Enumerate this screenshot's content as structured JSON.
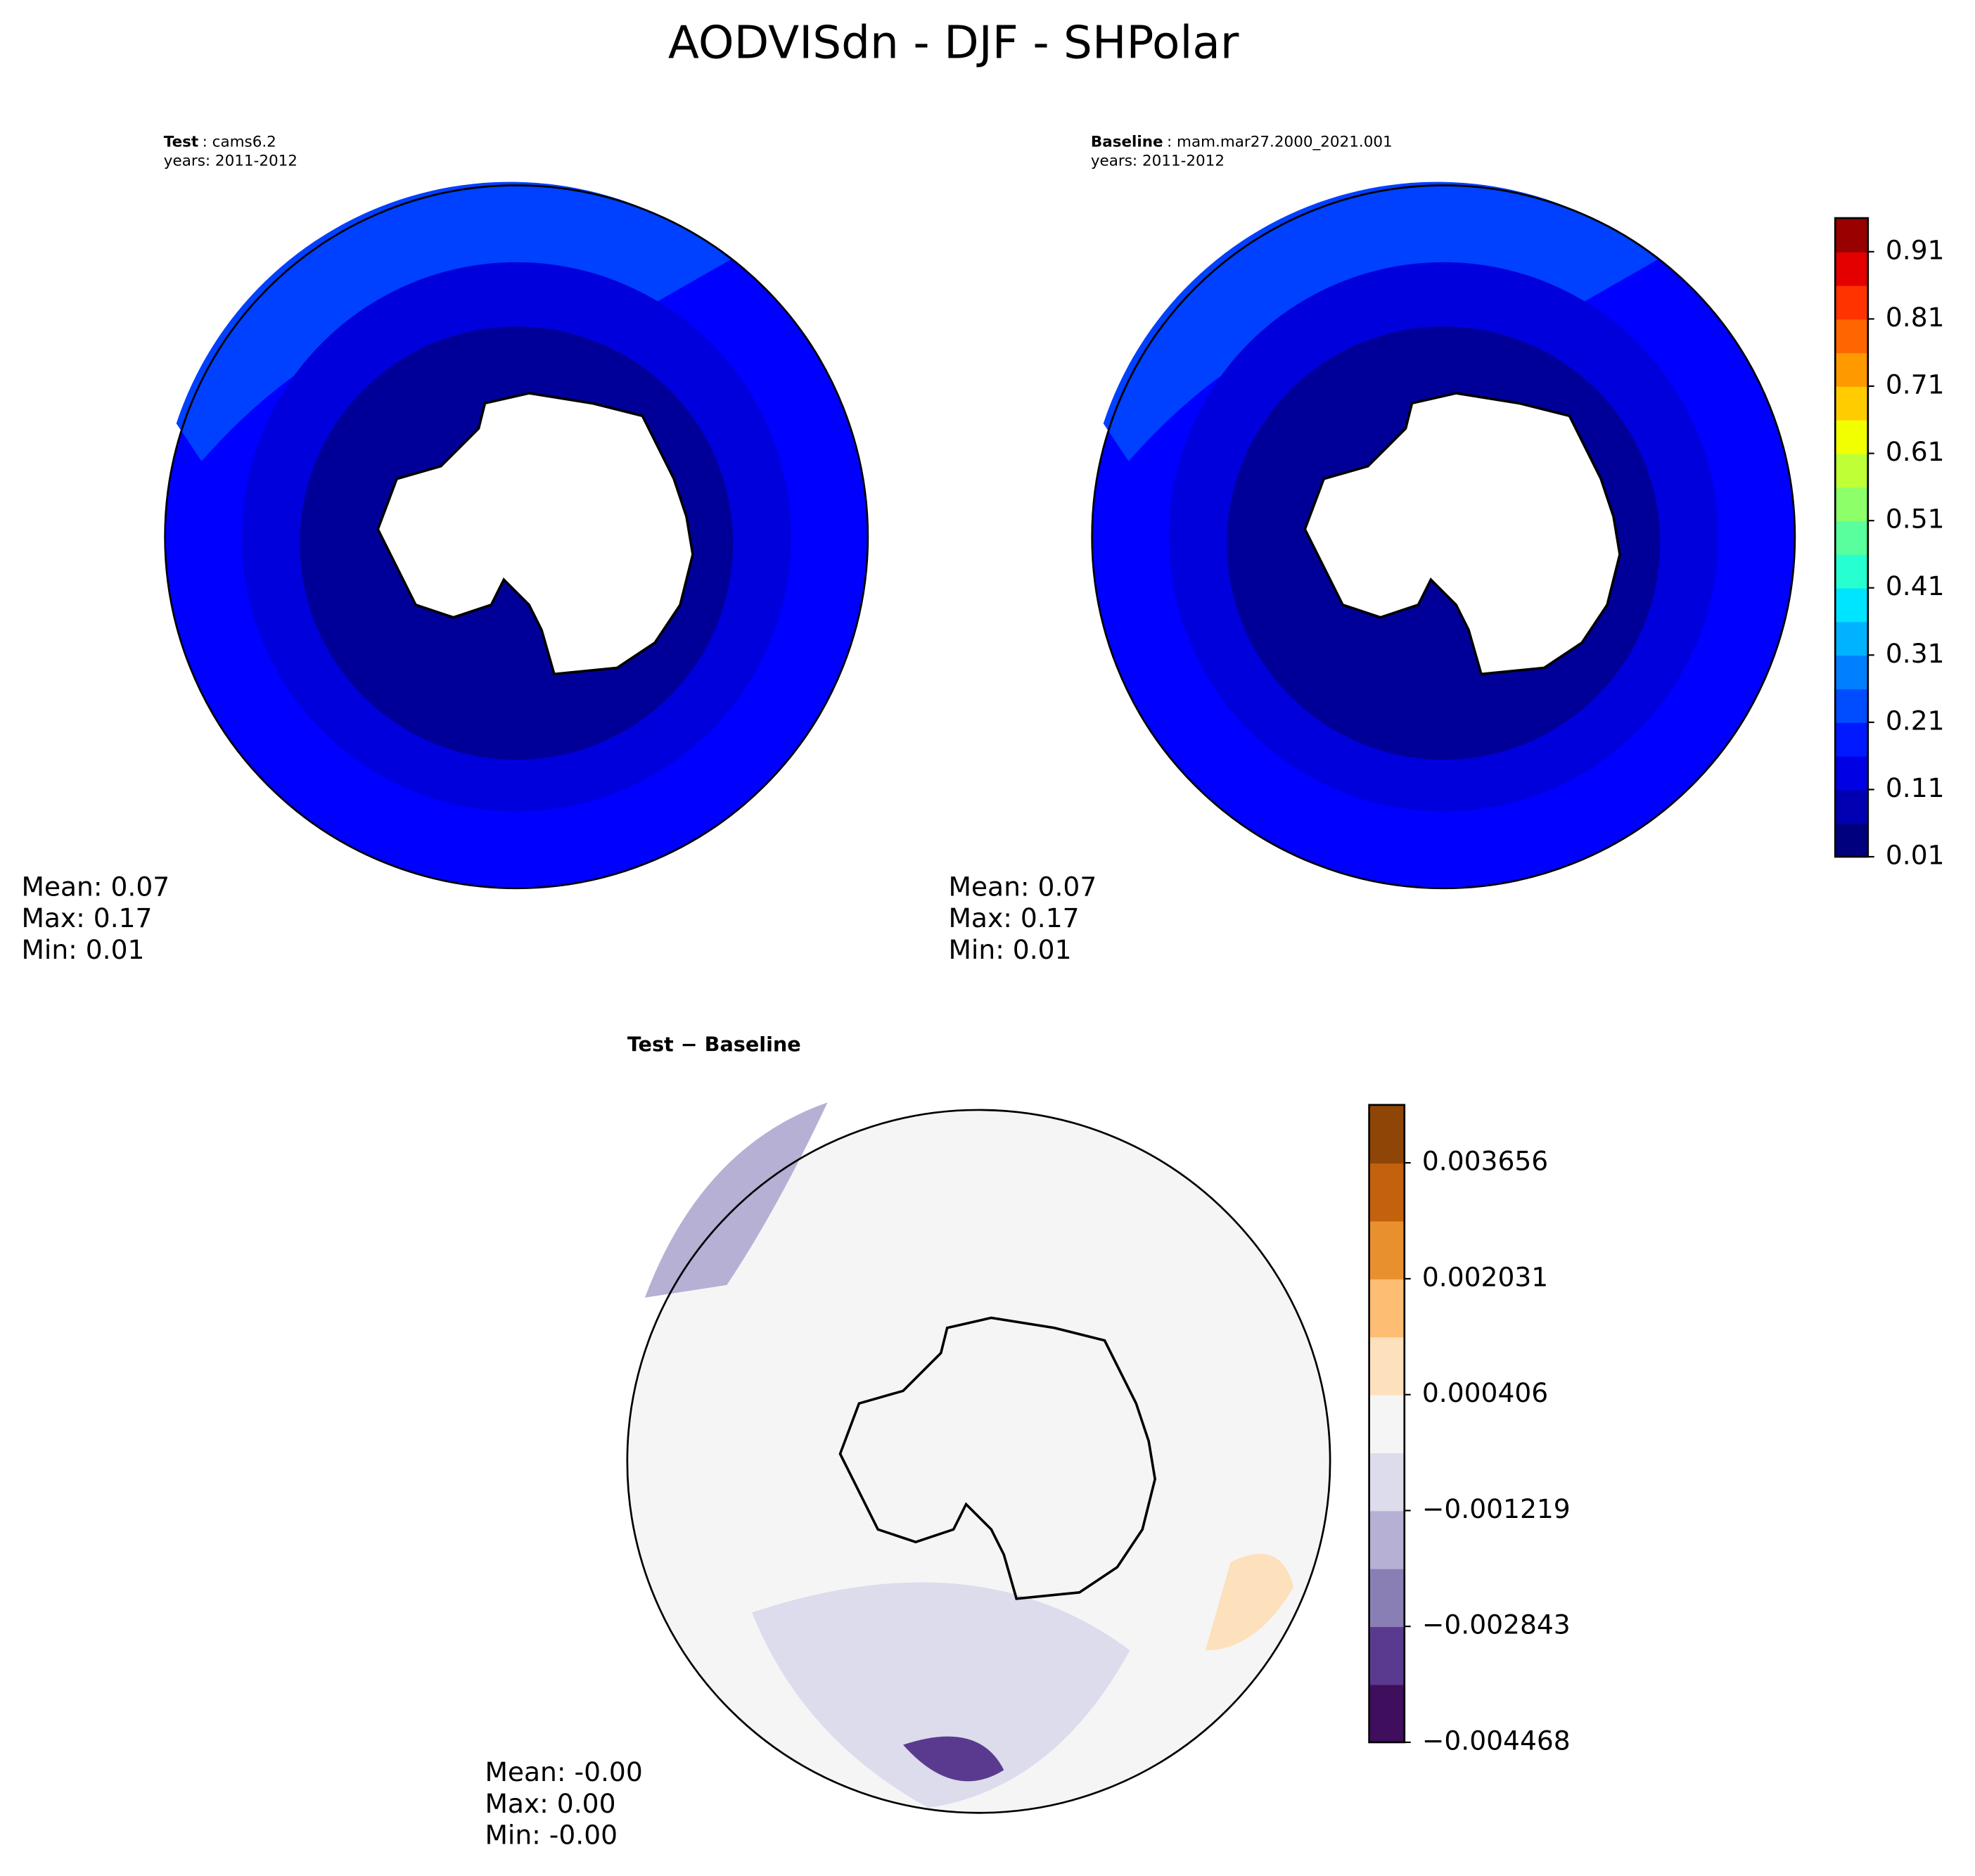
{
  "title": "AODVISdn - DJF - SHPolar",
  "panels": [
    {
      "label_bold": "Test",
      "label_rest": ": cams6.2",
      "years": "years: 2011-2012",
      "stats": [
        "Mean:  0.07",
        "Max:  0.17",
        "Min:  0.01"
      ]
    },
    {
      "label_bold": "Baseline",
      "label_rest": ": mam.mar27.2000_2021.001",
      "years": "years: 2011-2012",
      "stats": [
        "Mean:  0.07",
        "Max:  0.17",
        "Min:  0.01"
      ]
    },
    {
      "label_bold": "Test − Baseline",
      "stats": [
        "Mean: -0.00",
        "Max:  0.00",
        "Min: -0.00"
      ]
    }
  ],
  "colorbars": [
    {
      "lim": [
        0.01,
        0.96
      ],
      "ticks": [
        0.01,
        0.11,
        0.21,
        0.31,
        0.41,
        0.51,
        0.61,
        0.71,
        0.81,
        0.91
      ],
      "colors": [
        "#00007f",
        "#0000b2",
        "#0000e5",
        "#0019ff",
        "#004cff",
        "#007fff",
        "#00b2ff",
        "#00e5ff",
        "#26ffd0",
        "#59ff9c",
        "#8cff69",
        "#bfff36",
        "#f2ff00",
        "#ffcc00",
        "#ff9900",
        "#ff6600",
        "#ff3300",
        "#e50000",
        "#990000"
      ]
    },
    {
      "lim": [
        -0.004468,
        0.004468
      ],
      "ticks": [
        {
          "value": -0.004468,
          "label": "−0.004468"
        },
        {
          "value": -0.002843,
          "label": "−0.002843"
        },
        {
          "value": -0.001219,
          "label": "−0.001219"
        },
        0.000406,
        0.002031,
        0.003656
      ],
      "colors": [
        "#3f0f5e",
        "#5a3a8e",
        "#8a7fb5",
        "#b5b0d4",
        "#dcdcec",
        "#f5f5f5",
        "#fde0bc",
        "#fdbd72",
        "#e8902e",
        "#c3610d",
        "#8e4506"
      ]
    }
  ]
}
